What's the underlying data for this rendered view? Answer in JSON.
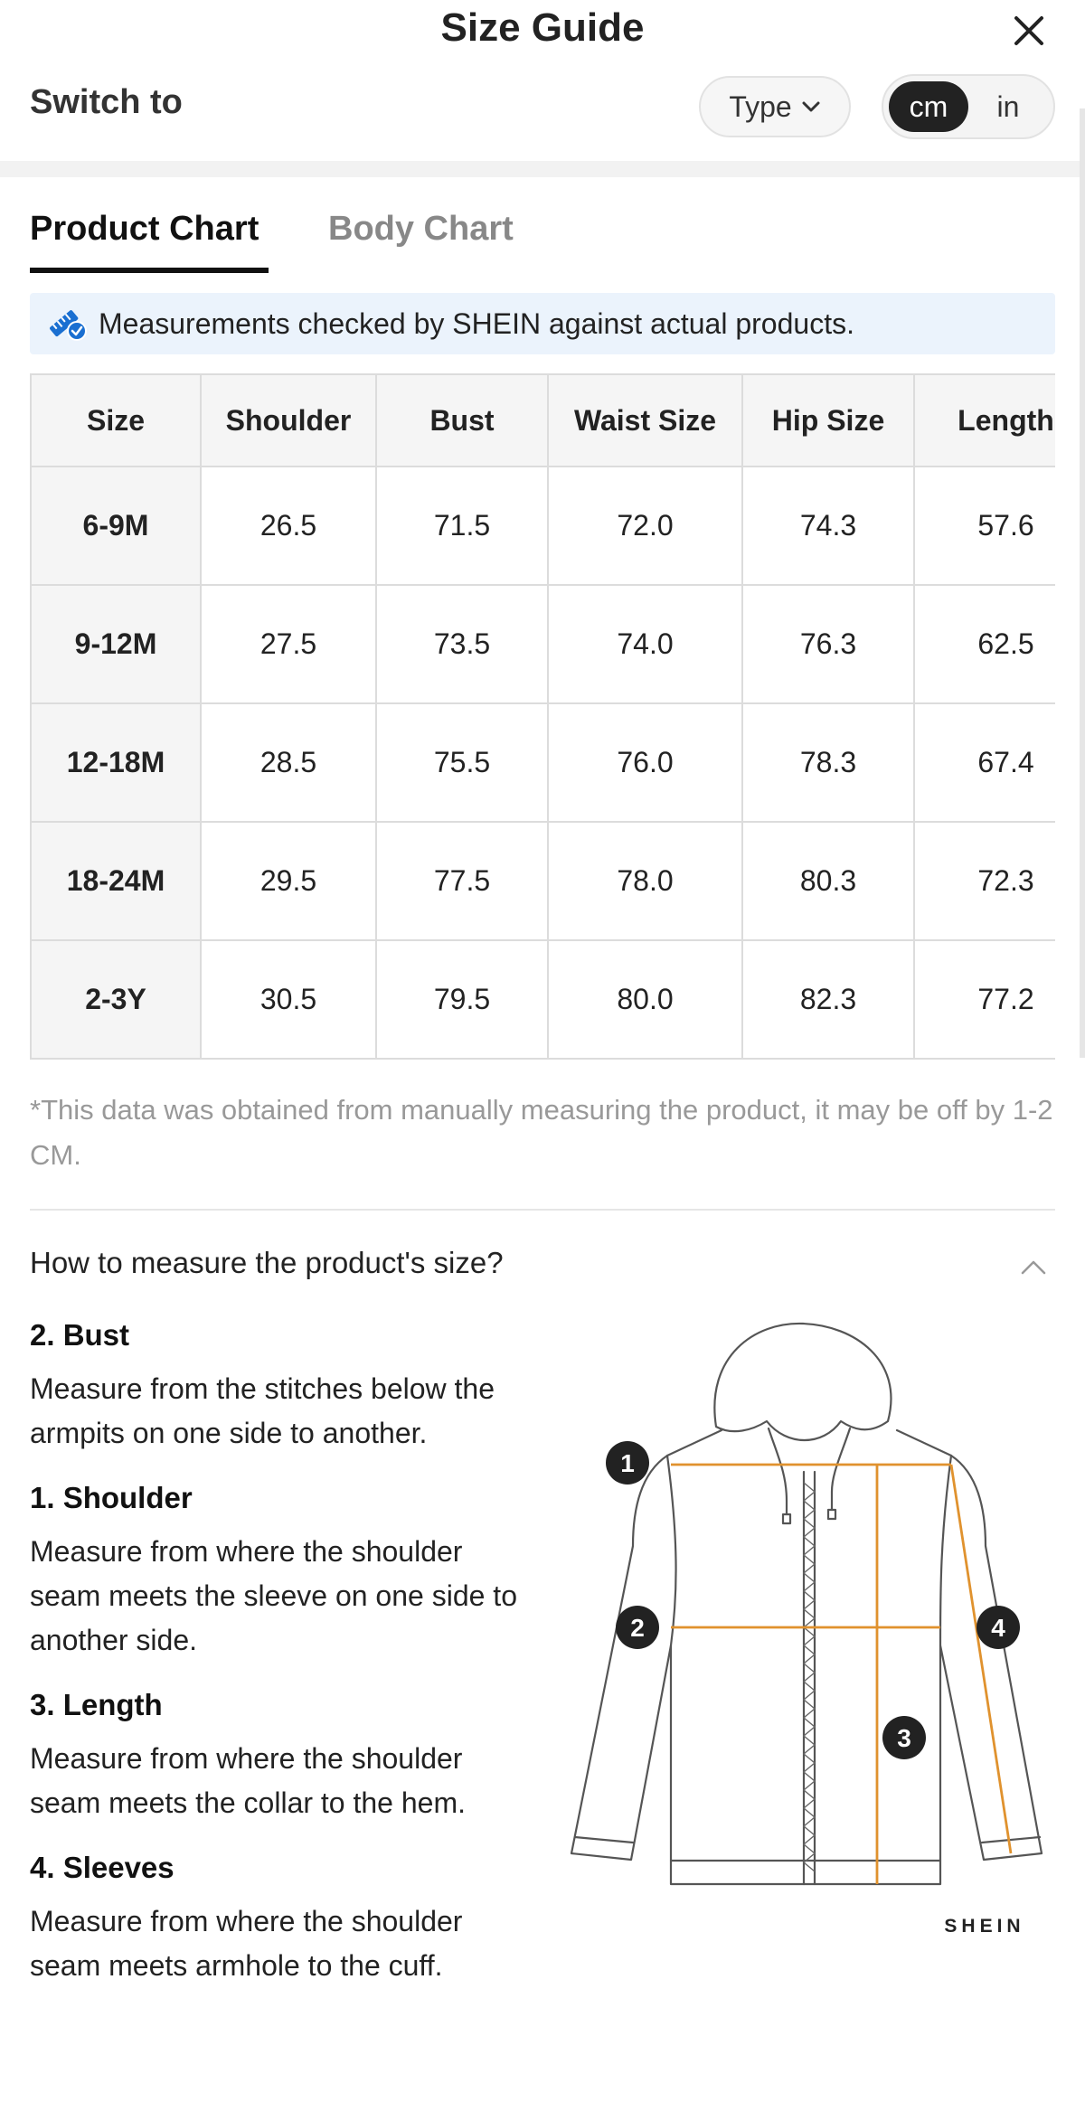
{
  "header": {
    "title": "Size Guide"
  },
  "switch": {
    "label": "Switch to",
    "type_label": "Type",
    "units": [
      "cm",
      "in"
    ],
    "active_unit": "cm"
  },
  "tabs": [
    {
      "label": "Product Chart",
      "active": true
    },
    {
      "label": "Body Chart",
      "active": false
    }
  ],
  "notice": {
    "text": "Measurements checked by SHEIN against actual products."
  },
  "table": {
    "headers": [
      "Size",
      "Shoulder",
      "Bust",
      "Waist Size",
      "Hip Size",
      "Length"
    ],
    "rows": [
      [
        "6-9M",
        "26.5",
        "71.5",
        "72.0",
        "74.3",
        "57.6"
      ],
      [
        "9-12M",
        "27.5",
        "73.5",
        "74.0",
        "76.3",
        "62.5"
      ],
      [
        "12-18M",
        "28.5",
        "75.5",
        "76.0",
        "78.3",
        "67.4"
      ],
      [
        "18-24M",
        "29.5",
        "77.5",
        "78.0",
        "80.3",
        "72.3"
      ],
      [
        "2-3Y",
        "30.5",
        "79.5",
        "80.0",
        "82.3",
        "77.2"
      ]
    ]
  },
  "footnote": "*This data was obtained from manually measuring the product, it may be off by 1-2 CM.",
  "measure": {
    "question": "How to measure the product's size?",
    "steps": [
      {
        "title": "2. Bust",
        "text": "Measure from the stitches below the armpits on one side to another."
      },
      {
        "title": "1. Shoulder",
        "text": "Measure from where the shoulder seam meets the sleeve on one side to another side."
      },
      {
        "title": "3. Length",
        "text": "Measure from where the shoulder seam meets the collar to the hem."
      },
      {
        "title": "4. Sleeves",
        "text": "Measure from where the shoulder seam meets armhole to the cuff."
      }
    ],
    "markers": [
      "1",
      "2",
      "3",
      "4"
    ],
    "brand": "SHEIN"
  },
  "colors": {
    "accent": "#222222",
    "notice_bg": "#ebf3fc",
    "measure_line": "#e0922e",
    "icon_blue": "#1a6fd1"
  }
}
